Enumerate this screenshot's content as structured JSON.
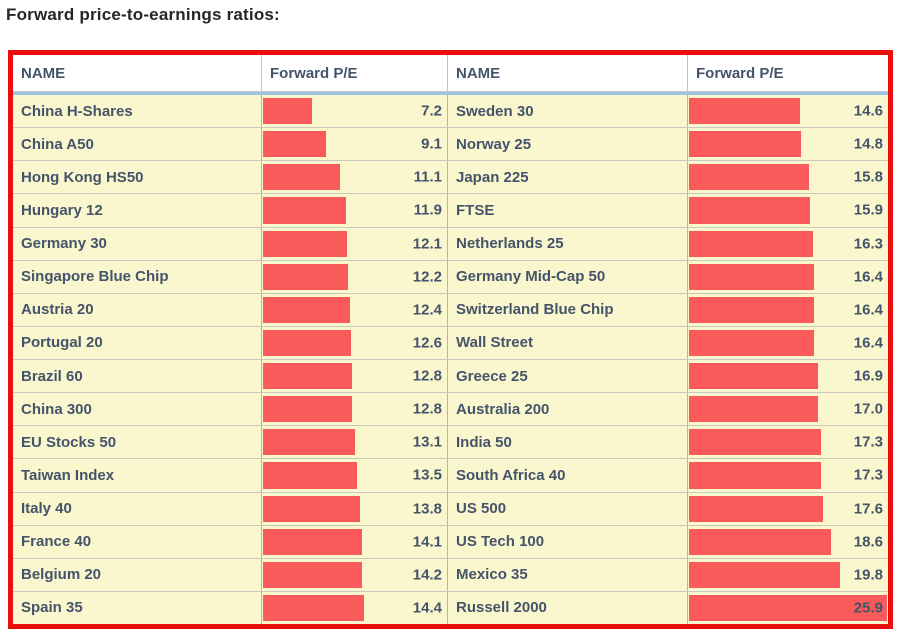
{
  "title": "Forward price-to-earnings ratios:",
  "table": {
    "header": {
      "name_label": "NAME",
      "pe_label": "Forward P/E"
    }
  },
  "colors": {
    "border_red": "#ED0E0E",
    "bar_red": "#FA5A5A",
    "row_bg": "#FAF6CD",
    "text_navy": "#44546A",
    "header_underline_blue": "#9DC3E6"
  },
  "chart_data": {
    "type": "table",
    "title": "Forward price-to-earnings ratios",
    "columns": [
      "NAME",
      "Forward P/E",
      "NAME",
      "Forward P/E"
    ],
    "bar_max": 25.9,
    "bar_scale_note": "inline data bars, width proportional to Forward P/E, full width at 25.9",
    "rows": [
      {
        "left": {
          "name": "China H-Shares",
          "pe": 7.2
        },
        "right": {
          "name": "Sweden 30",
          "pe": 14.6
        }
      },
      {
        "left": {
          "name": "China A50",
          "pe": 9.1
        },
        "right": {
          "name": "Norway 25",
          "pe": 14.8
        }
      },
      {
        "left": {
          "name": "Hong Kong HS50",
          "pe": 11.1
        },
        "right": {
          "name": "Japan 225",
          "pe": 15.8
        }
      },
      {
        "left": {
          "name": "Hungary 12",
          "pe": 11.9
        },
        "right": {
          "name": "FTSE",
          "pe": 15.9
        }
      },
      {
        "left": {
          "name": "Germany 30",
          "pe": 12.1
        },
        "right": {
          "name": "Netherlands 25",
          "pe": 16.3
        }
      },
      {
        "left": {
          "name": "Singapore Blue Chip",
          "pe": 12.2
        },
        "right": {
          "name": "Germany Mid-Cap 50",
          "pe": 16.4
        }
      },
      {
        "left": {
          "name": "Austria 20",
          "pe": 12.4
        },
        "right": {
          "name": "Switzerland Blue Chip",
          "pe": 16.4
        }
      },
      {
        "left": {
          "name": "Portugal 20",
          "pe": 12.6
        },
        "right": {
          "name": "Wall Street",
          "pe": 16.4
        }
      },
      {
        "left": {
          "name": "Brazil 60",
          "pe": 12.8
        },
        "right": {
          "name": "Greece 25",
          "pe": 16.9
        }
      },
      {
        "left": {
          "name": "China 300",
          "pe": 12.8
        },
        "right": {
          "name": "Australia 200",
          "pe": 17.0
        }
      },
      {
        "left": {
          "name": "EU Stocks 50",
          "pe": 13.1
        },
        "right": {
          "name": "India 50",
          "pe": 17.3
        }
      },
      {
        "left": {
          "name": "Taiwan Index",
          "pe": 13.5
        },
        "right": {
          "name": "South Africa 40",
          "pe": 17.3
        }
      },
      {
        "left": {
          "name": "Italy 40",
          "pe": 13.8
        },
        "right": {
          "name": "US 500",
          "pe": 17.6
        }
      },
      {
        "left": {
          "name": "France 40",
          "pe": 14.1
        },
        "right": {
          "name": "US Tech 100",
          "pe": 18.6
        }
      },
      {
        "left": {
          "name": "Belgium 20",
          "pe": 14.2
        },
        "right": {
          "name": "Mexico 35",
          "pe": 19.8
        }
      },
      {
        "left": {
          "name": "Spain 35",
          "pe": 14.4
        },
        "right": {
          "name": "Russell 2000",
          "pe": 25.9
        }
      }
    ]
  }
}
